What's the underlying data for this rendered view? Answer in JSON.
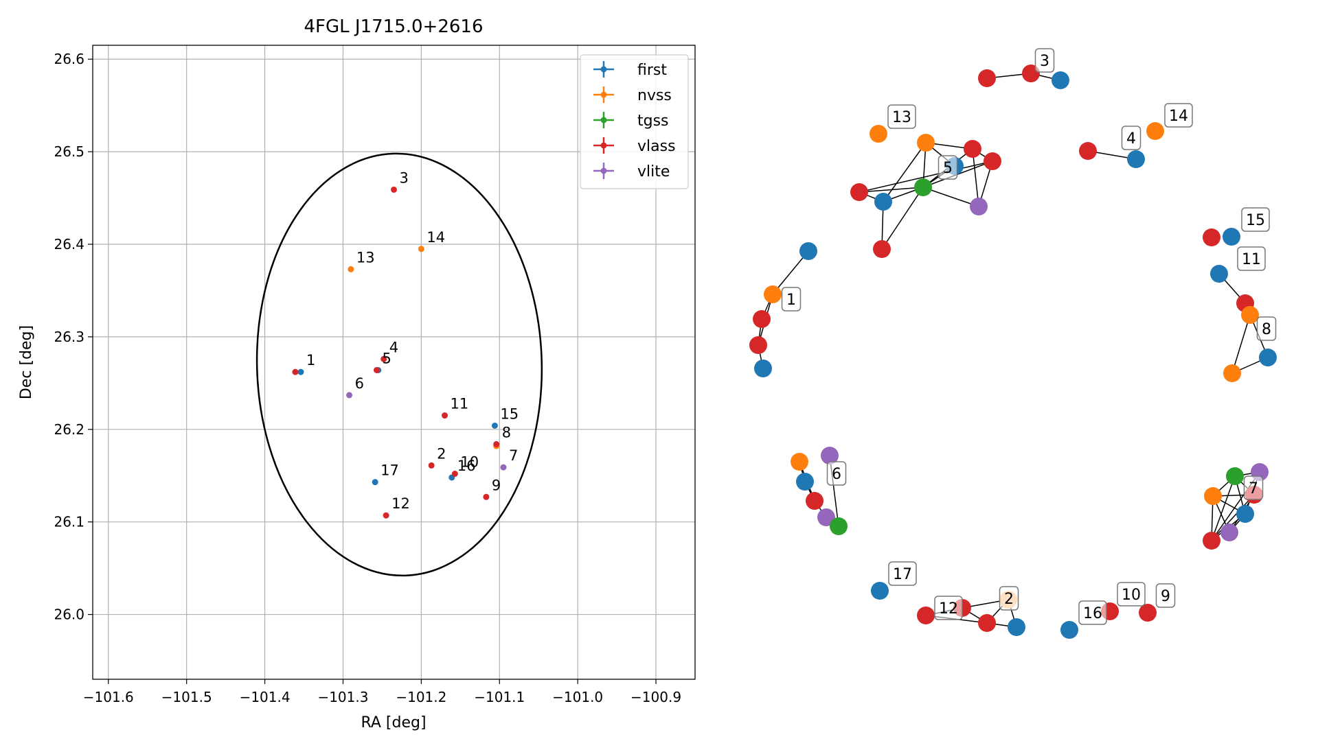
{
  "chart_data": [
    {
      "type": "scatter",
      "title": "4FGL J1715.0+2616",
      "xlabel": "RA [deg]",
      "ylabel": "Dec [deg]",
      "xlim": [
        -101.62,
        -100.85
      ],
      "ylim": [
        25.93,
        26.615
      ],
      "x_ticks": [
        -101.6,
        -101.5,
        -101.4,
        -101.3,
        -101.2,
        -101.1,
        -101.0,
        -100.9
      ],
      "x_tick_labels": [
        "−101.6",
        "−101.5",
        "−101.4",
        "−101.3",
        "−101.2",
        "−101.1",
        "−101.0",
        "−100.9"
      ],
      "y_ticks": [
        26.0,
        26.1,
        26.2,
        26.3,
        26.4,
        26.5,
        26.6
      ],
      "y_tick_labels": [
        "26.0",
        "26.1",
        "26.2",
        "26.3",
        "26.4",
        "26.5",
        "26.6"
      ],
      "grid": true,
      "legend_position": "top-right",
      "ellipse": {
        "center": [
          -101.228,
          26.27
        ],
        "semi_x": 0.182,
        "semi_y": 0.228,
        "color": "#000000"
      },
      "series": [
        {
          "name": "first",
          "color": "#1f77b4",
          "x": [
            -101.354,
            -101.255,
            -101.106,
            -101.161,
            -101.259
          ],
          "y": [
            26.262,
            26.264,
            26.204,
            26.148,
            26.143
          ]
        },
        {
          "name": "nvss",
          "color": "#ff7f0e",
          "x": [
            -101.29,
            -101.2,
            -101.104
          ],
          "y": [
            26.373,
            26.395,
            26.182
          ]
        },
        {
          "name": "tgss",
          "color": "#2ca02c",
          "x": [],
          "y": []
        },
        {
          "name": "vlass",
          "color": "#d62728",
          "x": [
            -101.361,
            -101.235,
            -101.248,
            -101.257,
            -101.17,
            -101.104,
            -101.187,
            -101.157,
            -101.117,
            -101.245
          ],
          "y": [
            26.262,
            26.459,
            26.276,
            26.264,
            26.215,
            26.184,
            26.161,
            26.152,
            26.127,
            26.107
          ]
        },
        {
          "name": "vlite",
          "color": "#9467bd",
          "x": [
            -101.292,
            -101.095
          ],
          "y": [
            26.237,
            26.159
          ]
        }
      ],
      "point_labels": [
        {
          "text": "1",
          "x": -101.354,
          "y": 26.262
        },
        {
          "text": "2",
          "x": -101.187,
          "y": 26.161
        },
        {
          "text": "3",
          "x": -101.235,
          "y": 26.459
        },
        {
          "text": "4",
          "x": -101.248,
          "y": 26.276
        },
        {
          "text": "5",
          "x": -101.257,
          "y": 26.264
        },
        {
          "text": "6",
          "x": -101.292,
          "y": 26.237
        },
        {
          "text": "7",
          "x": -101.095,
          "y": 26.159
        },
        {
          "text": "8",
          "x": -101.104,
          "y": 26.184
        },
        {
          "text": "9",
          "x": -101.117,
          "y": 26.127
        },
        {
          "text": "10",
          "x": -101.157,
          "y": 26.152
        },
        {
          "text": "11",
          "x": -101.17,
          "y": 26.215
        },
        {
          "text": "12",
          "x": -101.245,
          "y": 26.107
        },
        {
          "text": "13",
          "x": -101.29,
          "y": 26.373
        },
        {
          "text": "14",
          "x": -101.2,
          "y": 26.395
        },
        {
          "text": "15",
          "x": -101.106,
          "y": 26.204
        },
        {
          "text": "16",
          "x": -101.161,
          "y": 26.148
        },
        {
          "text": "17",
          "x": -101.259,
          "y": 26.143
        }
      ]
    },
    {
      "type": "network",
      "nodes": [
        {
          "id": "a1",
          "color": "#1f77b4"
        },
        {
          "id": "a2",
          "color": "#ff7f0e"
        },
        {
          "id": "a3",
          "color": "#d62728"
        },
        {
          "id": "a4",
          "color": "#d62728"
        },
        {
          "id": "a5",
          "color": "#1f77b4"
        },
        {
          "id": "b1",
          "color": "#d62728"
        },
        {
          "id": "b2",
          "color": "#d62728"
        },
        {
          "id": "b3",
          "color": "#1f77b4"
        },
        {
          "id": "c1",
          "color": "#ff7f0e"
        },
        {
          "id": "c2",
          "color": "#ff7f0e"
        },
        {
          "id": "c3",
          "color": "#d62728"
        },
        {
          "id": "c4",
          "color": "#d62728"
        },
        {
          "id": "c5",
          "color": "#1f77b4"
        },
        {
          "id": "c6",
          "color": "#2ca02c"
        },
        {
          "id": "c7",
          "color": "#d62728"
        },
        {
          "id": "c8",
          "color": "#1f77b4"
        },
        {
          "id": "c9",
          "color": "#9467bd"
        },
        {
          "id": "c10",
          "color": "#d62728"
        },
        {
          "id": "d1",
          "color": "#d62728"
        },
        {
          "id": "d2",
          "color": "#1f77b4"
        },
        {
          "id": "d3",
          "color": "#ff7f0e"
        },
        {
          "id": "e1",
          "color": "#d62728"
        },
        {
          "id": "e2",
          "color": "#1f77b4"
        },
        {
          "id": "e3",
          "color": "#1f77b4"
        },
        {
          "id": "e4",
          "color": "#d62728"
        },
        {
          "id": "e5",
          "color": "#ff7f0e"
        },
        {
          "id": "e6",
          "color": "#1f77b4"
        },
        {
          "id": "e7",
          "color": "#ff7f0e"
        },
        {
          "id": "f1",
          "color": "#ff7f0e"
        },
        {
          "id": "f2",
          "color": "#9467bd"
        },
        {
          "id": "f3",
          "color": "#1f77b4"
        },
        {
          "id": "f4",
          "color": "#d62728"
        },
        {
          "id": "f5",
          "color": "#9467bd"
        },
        {
          "id": "f6",
          "color": "#2ca02c"
        },
        {
          "id": "g1",
          "color": "#2ca02c"
        },
        {
          "id": "g2",
          "color": "#9467bd"
        },
        {
          "id": "g3",
          "color": "#ff7f0e"
        },
        {
          "id": "g4",
          "color": "#d62728"
        },
        {
          "id": "g5",
          "color": "#1f77b4"
        },
        {
          "id": "g6",
          "color": "#9467bd"
        },
        {
          "id": "g7",
          "color": "#d62728"
        },
        {
          "id": "h1",
          "color": "#1f77b4"
        },
        {
          "id": "h2",
          "color": "#d62728"
        },
        {
          "id": "h3",
          "color": "#d62728"
        },
        {
          "id": "h4",
          "color": "#ffbb78"
        },
        {
          "id": "h5",
          "color": "#d62728"
        },
        {
          "id": "h6",
          "color": "#1f77b4"
        },
        {
          "id": "i1",
          "color": "#1f77b4"
        },
        {
          "id": "i2",
          "color": "#d62728"
        },
        {
          "id": "i3",
          "color": "#d62728"
        }
      ],
      "edges": [
        [
          "a1",
          "a2"
        ],
        [
          "a2",
          "a3"
        ],
        [
          "a3",
          "a4"
        ],
        [
          "a4",
          "a5"
        ],
        [
          "a2",
          "a4"
        ],
        [
          "b1",
          "b2"
        ],
        [
          "b2",
          "b3"
        ],
        [
          "c2",
          "c3"
        ],
        [
          "c2",
          "c5"
        ],
        [
          "c2",
          "c6"
        ],
        [
          "c2",
          "c8"
        ],
        [
          "c3",
          "c4"
        ],
        [
          "c3",
          "c6"
        ],
        [
          "c3",
          "c9"
        ],
        [
          "c4",
          "c6"
        ],
        [
          "c4",
          "c9"
        ],
        [
          "c5",
          "c6"
        ],
        [
          "c6",
          "c7"
        ],
        [
          "c6",
          "c8"
        ],
        [
          "c6",
          "c9"
        ],
        [
          "c7",
          "c8"
        ],
        [
          "c6",
          "c10"
        ],
        [
          "c8",
          "c10"
        ],
        [
          "c7",
          "c4"
        ],
        [
          "d1",
          "d2"
        ],
        [
          "e4",
          "e3"
        ],
        [
          "e4",
          "e5"
        ],
        [
          "e4",
          "e6"
        ],
        [
          "e5",
          "e7"
        ],
        [
          "e7",
          "e6"
        ],
        [
          "f1",
          "f3"
        ],
        [
          "f3",
          "f4"
        ],
        [
          "f4",
          "f5"
        ],
        [
          "f5",
          "f6"
        ],
        [
          "f2",
          "f6"
        ],
        [
          "f1",
          "f4"
        ],
        [
          "g1",
          "g3"
        ],
        [
          "g1",
          "g4"
        ],
        [
          "g1",
          "g5"
        ],
        [
          "g1",
          "g7"
        ],
        [
          "g1",
          "g2"
        ],
        [
          "g3",
          "g5"
        ],
        [
          "g3",
          "g4"
        ],
        [
          "g3",
          "g6"
        ],
        [
          "g3",
          "g7"
        ],
        [
          "g4",
          "g6"
        ],
        [
          "g4",
          "g7"
        ],
        [
          "g5",
          "g7"
        ],
        [
          "g5",
          "g6"
        ],
        [
          "g2",
          "g7"
        ],
        [
          "g2",
          "g5"
        ],
        [
          "h2",
          "h3"
        ],
        [
          "h3",
          "h4"
        ],
        [
          "h4",
          "h5"
        ],
        [
          "h4",
          "h6"
        ],
        [
          "h2",
          "h5"
        ],
        [
          "h5",
          "h6"
        ],
        [
          "h3",
          "h5"
        ]
      ],
      "labels": [
        "1",
        "2",
        "3",
        "4",
        "5",
        "6",
        "7",
        "8",
        "9",
        "10",
        "11",
        "12",
        "13",
        "14",
        "15",
        "16",
        "17"
      ]
    }
  ]
}
